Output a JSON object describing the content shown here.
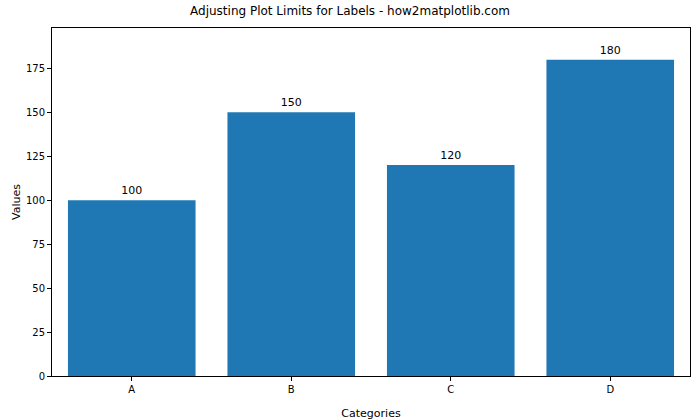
{
  "chart_data": {
    "type": "bar",
    "title": "Adjusting Plot Limits for Labels - how2matplotlib.com",
    "x_label": "Categories",
    "y_label": "Values",
    "categories": [
      "A",
      "B",
      "C",
      "D"
    ],
    "values": [
      100,
      150,
      120,
      180
    ],
    "color": "#1f77b4",
    "ylim": [
      0,
      198
    ],
    "yticks": [
      0,
      25,
      50,
      75,
      100,
      125,
      150,
      175
    ],
    "grid": false,
    "data_labels": true
  }
}
